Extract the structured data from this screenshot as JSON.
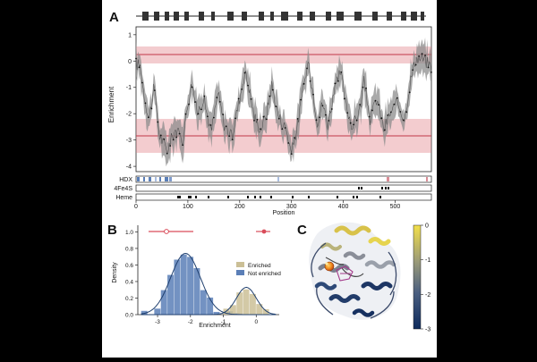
{
  "figure": {
    "background": "#000000",
    "panel_bg": "#ffffff",
    "panels": {
      "A": {
        "letter": "A",
        "ylabel": "Enrichment",
        "xlabel": "Position",
        "yticks": [
          "1",
          "0",
          "-1",
          "-2",
          "-3",
          "-4"
        ],
        "xticks": [
          "0",
          "100",
          "200",
          "300",
          "400",
          "500"
        ],
        "tracks": [
          "HDX",
          "4Fe4S",
          "Heme"
        ],
        "band_color": "#e07a80",
        "line_color": "#c0394a"
      },
      "B": {
        "letter": "B",
        "ylabel": "Density",
        "xlabel": "Enrichment",
        "yticks": [
          "0.0",
          "0.2",
          "0.4",
          "0.6",
          "0.8",
          "1.0"
        ],
        "xticks": [
          "-3",
          "-2",
          "-1",
          "0"
        ],
        "legend": [
          "Enriched",
          "Not enriched"
        ],
        "enriched_color": "#cbbf96",
        "not_enriched_color": "#5b7fb7",
        "curve_color": "#1f3f6e"
      },
      "C": {
        "letter": "C",
        "colorbar_ticks": [
          "0",
          "-1",
          "-2",
          "-3"
        ],
        "colorbar_top": "#f2df4a",
        "colorbar_bottom": "#0d2a5c"
      }
    }
  }
}
